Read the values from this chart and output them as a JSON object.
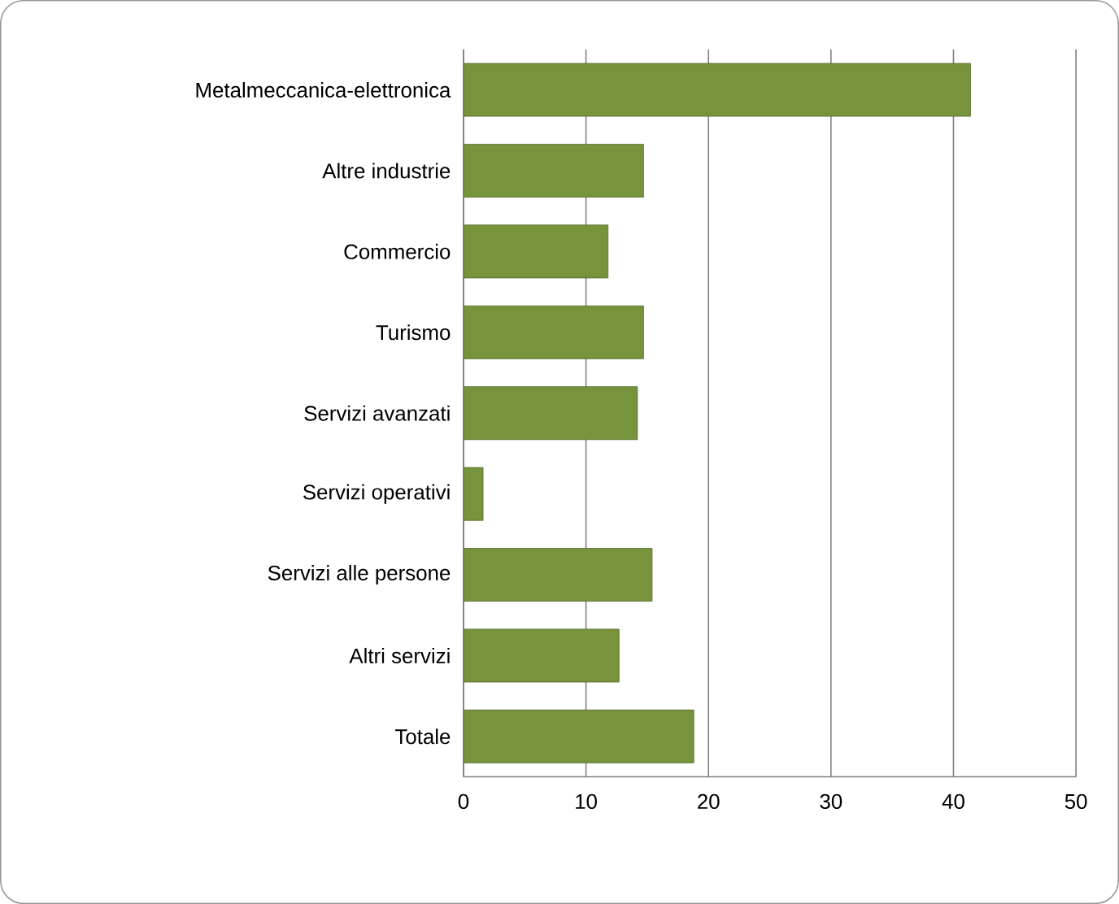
{
  "chart_data": {
    "type": "bar",
    "orientation": "horizontal",
    "categories": [
      "Metalmeccanica-elettronica",
      "Altre industrie",
      "Commercio",
      "Turismo",
      "Servizi avanzati",
      "Servizi operativi",
      "Servizi alle persone",
      "Altri servizi",
      "Totale"
    ],
    "values": [
      41.4,
      14.7,
      11.8,
      14.7,
      14.2,
      1.6,
      15.4,
      12.7,
      18.8
    ],
    "color": "#77933c",
    "xlim": [
      0,
      50
    ],
    "xticks": [
      0,
      10,
      20,
      30,
      40,
      50
    ],
    "grid": "x"
  }
}
